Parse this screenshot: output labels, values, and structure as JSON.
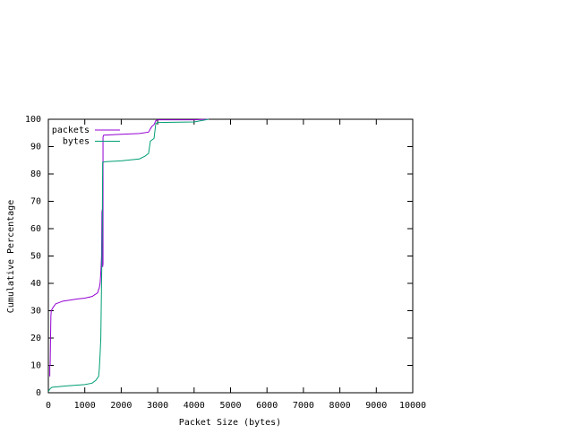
{
  "chart_data": {
    "type": "line",
    "xlabel": "Packet Size (bytes)",
    "ylabel": "Cumulative Percentage",
    "xlim": [
      0,
      10000
    ],
    "ylim": [
      0,
      100
    ],
    "xticks": [
      0,
      1000,
      2000,
      3000,
      4000,
      5000,
      6000,
      7000,
      8000,
      9000,
      10000
    ],
    "yticks": [
      0,
      10,
      20,
      30,
      40,
      50,
      60,
      70,
      80,
      90,
      100
    ],
    "legend": "top-left",
    "series": [
      {
        "name": "packets",
        "color": "#9400d3",
        "x": [
          40,
          40,
          50,
          60,
          70,
          80,
          120,
          200,
          400,
          800,
          1000,
          1200,
          1350,
          1400,
          1420,
          1440,
          1460,
          1470,
          1480,
          1490,
          1500,
          1500,
          1520,
          2000,
          2500,
          2750,
          2800,
          2850,
          2900,
          2950,
          3000,
          4000,
          4400
        ],
        "values": [
          6,
          10,
          10,
          20,
          28,
          30,
          31,
          32.5,
          33.5,
          34.3,
          34.6,
          35.2,
          36.5,
          38.5,
          40,
          44,
          50,
          66,
          67,
          46,
          47,
          93.5,
          94.2,
          94.5,
          94.8,
          95.3,
          96.5,
          97.5,
          98,
          99.5,
          99.8,
          99.8,
          100
        ]
      },
      {
        "name": "bytes",
        "color": "#009e73",
        "x": [
          0,
          50,
          100,
          500,
          1000,
          1200,
          1300,
          1380,
          1400,
          1420,
          1440,
          1460,
          1480,
          1490,
          1600,
          2000,
          2500,
          2650,
          2750,
          2800,
          2900,
          2950,
          3000,
          4000,
          4200,
          4400
        ],
        "values": [
          0.5,
          1.5,
          2,
          2.5,
          3,
          3.5,
          4.5,
          6,
          9,
          14,
          20,
          40,
          60,
          84.3,
          84.5,
          84.8,
          85.5,
          86.5,
          87.5,
          92,
          93,
          98.5,
          98.8,
          99,
          99.5,
          100
        ]
      }
    ]
  }
}
